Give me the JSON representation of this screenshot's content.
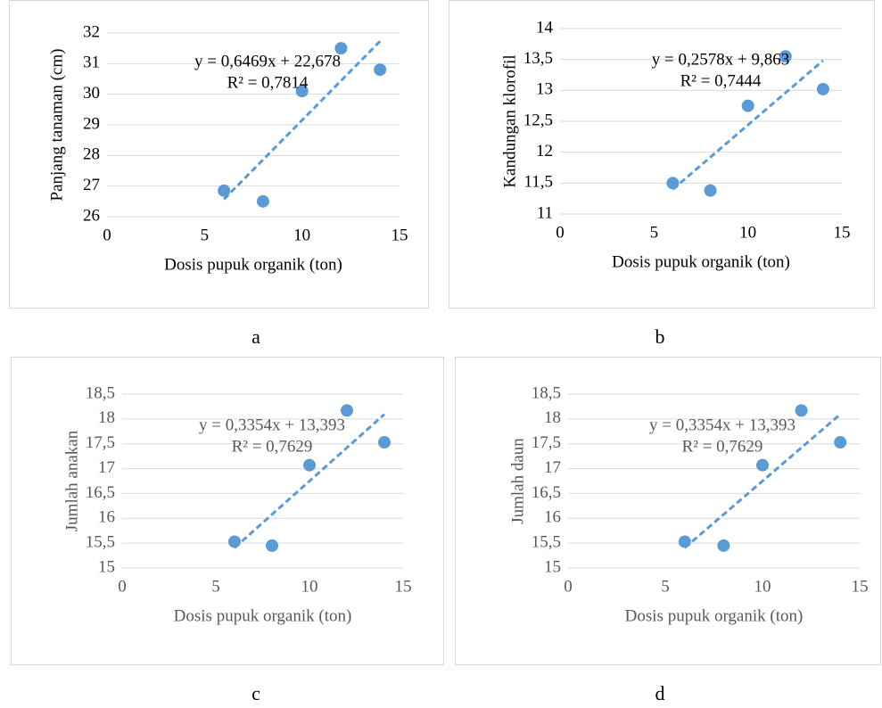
{
  "chart_data": [
    {
      "type": "scatter",
      "caption": "a",
      "x_label": "Dosis pupuk organik (ton)",
      "y_label": "Panjang tanaman (cm)",
      "x": [
        6,
        8,
        10,
        12,
        14
      ],
      "values": [
        26.85,
        26.5,
        30.1,
        31.5,
        30.8
      ],
      "color": "#5b9bd5",
      "trendline": true,
      "annotations": [
        "y = 0,6469x + 22,678",
        "R² = 0,7814"
      ],
      "xlim": [
        0,
        15
      ],
      "xticks": [
        0,
        5,
        10,
        15
      ],
      "ylim": [
        26,
        32
      ],
      "yticks": [
        26,
        27,
        28,
        29,
        30,
        31,
        32
      ],
      "grid": true
    },
    {
      "type": "scatter",
      "caption": "b",
      "x_label": "Dosis pupuk organik (ton)",
      "y_label": "Kandungan klorofil",
      "x": [
        6,
        8,
        10,
        12,
        14
      ],
      "values": [
        11.5,
        11.38,
        12.75,
        13.55,
        13.02
      ],
      "color": "#5b9bd5",
      "trendline": true,
      "annotations": [
        "y = 0,2578x + 9,863",
        "R² = 0,7444"
      ],
      "xlim": [
        0,
        15
      ],
      "xticks": [
        0,
        5,
        10,
        15
      ],
      "ylim": [
        11,
        14
      ],
      "yticks": [
        11,
        {
          "value": 11.5,
          "label": "11,5"
        },
        12,
        {
          "value": 12.5,
          "label": "12,5"
        },
        13,
        {
          "value": 13.5,
          "label": "13,5"
        },
        14
      ],
      "grid": true
    },
    {
      "type": "scatter",
      "caption": "c",
      "x_label": "Dosis pupuk organik (ton)",
      "y_label": "Jumlah anakan",
      "x": [
        6,
        8,
        10,
        12,
        14
      ],
      "values": [
        15.53,
        15.45,
        17.07,
        18.17,
        17.53
      ],
      "color": "#5b9bd5",
      "trendline": true,
      "annotations": [
        "y = 0,3354x + 13,393",
        "R² = 0,7629"
      ],
      "xlim": [
        0,
        15
      ],
      "xticks": [
        0,
        5,
        10,
        15
      ],
      "ylim": [
        15,
        18.5
      ],
      "yticks": [
        15,
        {
          "value": 15.5,
          "label": "15,5"
        },
        16,
        {
          "value": 16.5,
          "label": "16,5"
        },
        17,
        {
          "value": 17.5,
          "label": "17,5"
        },
        18,
        {
          "value": 18.5,
          "label": "18,5"
        }
      ],
      "grid": true
    },
    {
      "type": "scatter",
      "caption": "d",
      "x_label": "Dosis pupuk organik (ton)",
      "y_label": "Jumlah daun",
      "x": [
        6,
        8,
        10,
        12,
        14
      ],
      "values": [
        15.53,
        15.45,
        17.07,
        18.17,
        17.53
      ],
      "color": "#5b9bd5",
      "trendline": true,
      "annotations": [
        "y = 0,3354x + 13,393",
        "R² = 0,7629"
      ],
      "xlim": [
        0,
        15
      ],
      "xticks": [
        0,
        5,
        10,
        15
      ],
      "ylim": [
        15,
        18.5
      ],
      "yticks": [
        15,
        {
          "value": 15.5,
          "label": "15,5"
        },
        16,
        {
          "value": 16.5,
          "label": "16,5"
        },
        17,
        {
          "value": 17.5,
          "label": "17,5"
        },
        18,
        {
          "value": 18.5,
          "label": "18,5"
        }
      ],
      "grid": true
    }
  ]
}
